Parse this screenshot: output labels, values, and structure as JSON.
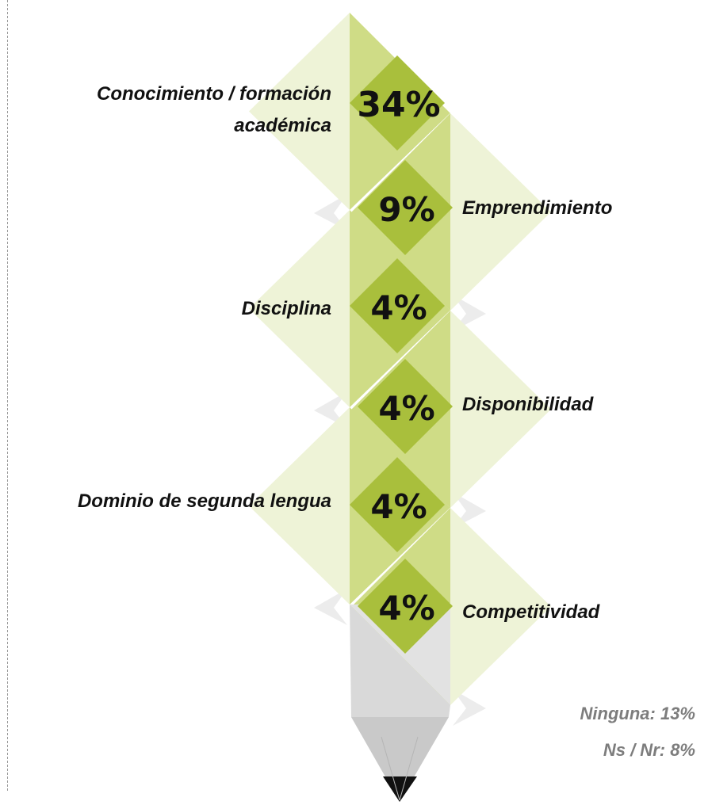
{
  "colors": {
    "light": "#eef3d7",
    "mid": "#cfdc86",
    "dark": "#a9bf3c",
    "text": "#111111",
    "note": "#7d7d7d",
    "pencil_body": "#d9d9d9",
    "pencil_tip": "#111111"
  },
  "chart_data": {
    "type": "bar",
    "categories": [
      "Conocimiento / formación académica",
      "Emprendimiento",
      "Disciplina",
      "Disponibilidad",
      "Dominio de segunda lengua",
      "Competitividad"
    ],
    "values": [
      34,
      9,
      4,
      4,
      4,
      4
    ],
    "value_labels": [
      "34%",
      "9%",
      "4%",
      "4%",
      "4%",
      "4%"
    ],
    "label_lines": [
      [
        "Conocimiento / formación",
        "académica"
      ],
      [
        "Emprendimiento"
      ],
      [
        "Disciplina"
      ],
      [
        "Disponibilidad"
      ],
      [
        "Dominio de segunda lengua"
      ],
      [
        "Competitividad"
      ]
    ],
    "sides": [
      "left",
      "right",
      "left",
      "right",
      "left",
      "right"
    ],
    "notes": [
      "Ninguna: 13%",
      "Ns / Nr: 8%"
    ]
  }
}
